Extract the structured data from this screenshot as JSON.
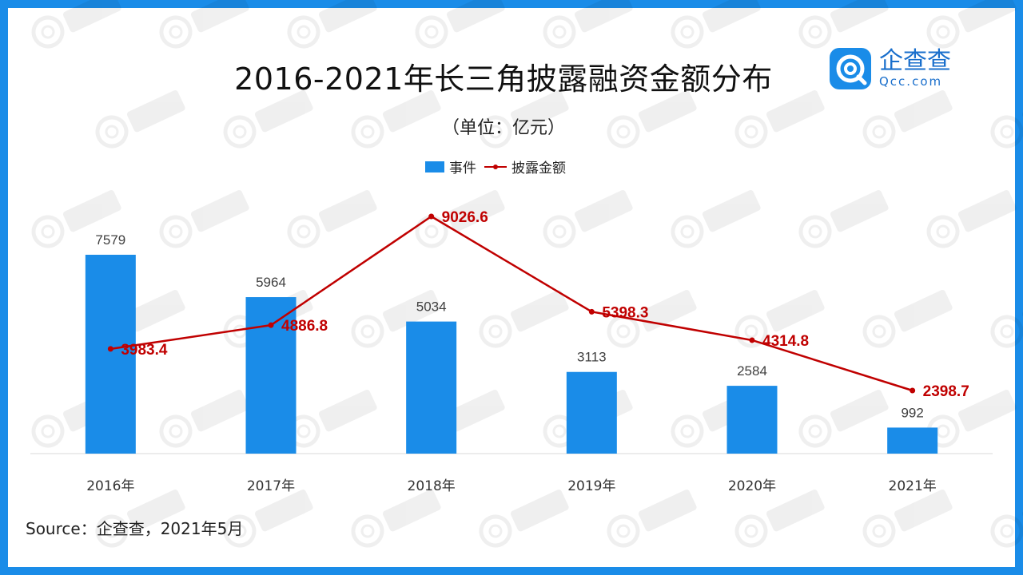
{
  "title": "2016-2021年长三角披露融资金额分布",
  "unit_label": "（单位：亿元）",
  "legend": {
    "bar_label": "事件",
    "line_label": "披露金额"
  },
  "logo": {
    "name_cn": "企查查",
    "name_en": "Qcc.com"
  },
  "source": "Source：企查查，2021年5月",
  "colors": {
    "frame": "#1a8ce8",
    "bar": "#1a8ce8",
    "line": "#c00000"
  },
  "chart_data": {
    "type": "bar",
    "categories": [
      "2016年",
      "2017年",
      "2018年",
      "2019年",
      "2020年",
      "2021年"
    ],
    "series": [
      {
        "name": "事件",
        "type": "bar",
        "values": [
          7579,
          5964,
          5034,
          3113,
          2584,
          992
        ]
      },
      {
        "name": "披露金额",
        "type": "line",
        "values": [
          3983.4,
          4886.8,
          9026.6,
          5398.3,
          4314.8,
          2398.7
        ]
      }
    ],
    "bar_ylim": [
      0,
      9000
    ],
    "line_ylim": [
      -1000,
      9026.6
    ],
    "grid": false,
    "legend_position": "top-center"
  }
}
